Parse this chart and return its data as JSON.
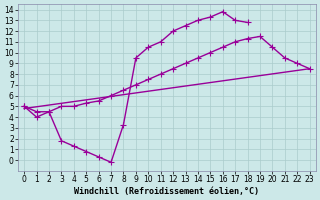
{
  "background_color": "#cce8e8",
  "plot_bg_color": "#cce8e8",
  "grid_color": "#aacccc",
  "line_color": "#990099",
  "marker": "+",
  "marker_size": 4,
  "line_width": 1.0,
  "xlabel": "Windchill (Refroidissement éolien,°C)",
  "xlabel_fontsize": 6,
  "tick_fontsize": 5.5,
  "xlim": [
    -0.5,
    23.5
  ],
  "ylim": [
    -1,
    14.5
  ],
  "xticks": [
    0,
    1,
    2,
    3,
    4,
    5,
    6,
    7,
    8,
    9,
    10,
    11,
    12,
    13,
    14,
    15,
    16,
    17,
    18,
    19,
    20,
    21,
    22,
    23
  ],
  "yticks": [
    0,
    1,
    2,
    3,
    4,
    5,
    6,
    7,
    8,
    9,
    10,
    11,
    12,
    13,
    14
  ],
  "series": [
    {
      "x": [
        0,
        1,
        2,
        3,
        4,
        5,
        6,
        7,
        8,
        9,
        10,
        11,
        12,
        13,
        14,
        15,
        16,
        17,
        18
      ],
      "y": [
        5.0,
        4.0,
        4.5,
        1.8,
        1.3,
        0.8,
        0.3,
        -0.2,
        3.3,
        9.5,
        10.5,
        11.0,
        12.0,
        12.5,
        13.0,
        13.3,
        13.8,
        13.0,
        12.8
      ],
      "with_markers": true
    },
    {
      "x": [
        0,
        1,
        2,
        3,
        4,
        5,
        6,
        7,
        8,
        9,
        10,
        11,
        12,
        13,
        14,
        15,
        16,
        17,
        18,
        19,
        20,
        21,
        22,
        23
      ],
      "y": [
        5.0,
        4.5,
        4.5,
        5.0,
        5.0,
        5.3,
        5.5,
        6.0,
        6.5,
        7.0,
        7.5,
        8.0,
        8.5,
        9.0,
        9.5,
        10.0,
        10.5,
        11.0,
        11.3,
        11.5,
        10.5,
        9.5,
        9.0,
        8.5
      ],
      "with_markers": true
    },
    {
      "x": [
        0,
        23
      ],
      "y": [
        4.8,
        8.5
      ],
      "with_markers": false
    }
  ]
}
